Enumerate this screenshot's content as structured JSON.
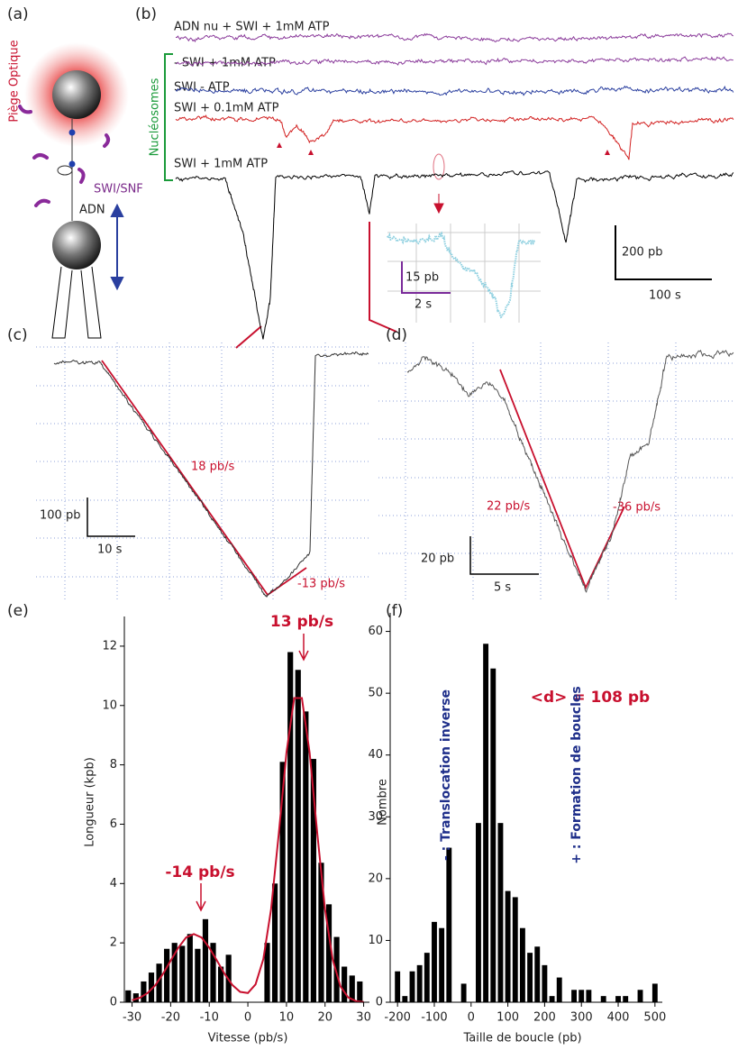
{
  "figure": {
    "a": {
      "label": "(a)",
      "trap": "Piège Optique",
      "enzyme": "SWI/SNF",
      "dna": "ADN"
    },
    "b": {
      "label": "(b)",
      "group": "Nucléosomes",
      "traces": [
        "ADN nu + SWI + 1mM ATP",
        "- SWI + 1mM ATP",
        "SWI - ATP",
        "SWI + 0.1mM ATP",
        "SWI + 1mM ATP"
      ],
      "scale_y": "200 pb",
      "scale_x": "100 s",
      "inset_y": "15 pb",
      "inset_x": "2 s"
    },
    "c": {
      "label": "(c)",
      "rate1": "18 pb/s",
      "rate2": "-13 pb/s",
      "scale_y": "100 pb",
      "scale_x": "10 s"
    },
    "d": {
      "label": "(d)",
      "rate1": "22 pb/s",
      "rate2": "-36 pb/s",
      "scale_y": "20 pb",
      "scale_x": "5 s"
    }
  },
  "chart_data": [
    {
      "type": "histogram",
      "label": "(e)",
      "x_label": "Vitesse (pb/s)",
      "y_label": "Longueur (kpb)",
      "annotations": [
        "-14 pb/s",
        "13 pb/s"
      ],
      "bins": [
        -32,
        -30,
        -28,
        -26,
        -24,
        -22,
        -20,
        -18,
        -16,
        -14,
        -12,
        -10,
        -8,
        -6,
        -4,
        -2,
        0,
        2,
        4,
        6,
        8,
        10,
        12,
        14,
        16,
        18,
        20,
        22,
        24,
        26,
        28,
        30
      ],
      "values": [
        0.4,
        0.3,
        0.7,
        1.0,
        1.3,
        1.8,
        2.0,
        1.9,
        2.3,
        1.8,
        2.8,
        2.0,
        1.2,
        1.6,
        0,
        0,
        0,
        0,
        2.0,
        4.0,
        8.1,
        11.8,
        11.2,
        9.8,
        8.2,
        4.7,
        3.3,
        2.2,
        1.2,
        0.9,
        0.7
      ],
      "color": "#000000",
      "fit": {
        "color": "#c8102e",
        "x": [
          -30,
          -28,
          -26,
          -24,
          -22,
          -20,
          -18,
          -16,
          -14,
          -12,
          -10,
          -8,
          -6,
          -4,
          -2,
          0,
          2,
          4,
          6,
          8,
          10,
          12,
          14,
          16,
          18,
          20,
          22,
          24,
          26,
          28,
          30
        ],
        "values": [
          0.07,
          0.15,
          0.31,
          0.57,
          0.95,
          1.4,
          1.84,
          2.18,
          2.3,
          2.18,
          1.84,
          1.4,
          0.95,
          0.58,
          0.35,
          0.31,
          0.6,
          1.45,
          3.13,
          5.66,
          8.41,
          10.25,
          10.25,
          8.41,
          5.66,
          3.13,
          1.42,
          0.53,
          0.16,
          0.04,
          0.01
        ]
      },
      "xlim": [
        -32,
        31.5
      ],
      "xticks": [
        -30,
        -20,
        -10,
        0,
        10,
        20,
        30
      ],
      "ylim": [
        0,
        13
      ],
      "yticks": [
        0,
        2,
        4,
        6,
        8,
        10,
        12
      ]
    },
    {
      "type": "histogram",
      "label": "(f)",
      "x_label": "Taille de boucle (pb)",
      "y_label": "Nombre",
      "annotations": [
        "<d> = 108 pb",
        "- : Translocation inverse",
        "+ : Formation de boucles"
      ],
      "bins": [
        -210,
        -190,
        -170,
        -150,
        -130,
        -110,
        -90,
        -70,
        -50,
        -30,
        -10,
        10,
        30,
        50,
        70,
        90,
        110,
        130,
        150,
        170,
        190,
        210,
        230,
        250,
        270,
        290,
        310,
        330,
        350,
        370,
        390,
        410,
        430,
        450,
        470,
        490,
        510
      ],
      "values": [
        5,
        1,
        5,
        6,
        8,
        13,
        12,
        25,
        0,
        3,
        0,
        29,
        58,
        54,
        29,
        18,
        17,
        12,
        8,
        9,
        6,
        1,
        4,
        0,
        2,
        2,
        2,
        0,
        1,
        0,
        1,
        1,
        0,
        2,
        0,
        3
      ],
      "color": "#000000",
      "xlim": [
        -220,
        520
      ],
      "xticks": [
        -200,
        -100,
        0,
        100,
        200,
        300,
        400,
        500
      ],
      "ylim": [
        0,
        63
      ],
      "yticks": [
        0,
        10,
        20,
        30,
        40,
        50,
        60
      ]
    }
  ]
}
